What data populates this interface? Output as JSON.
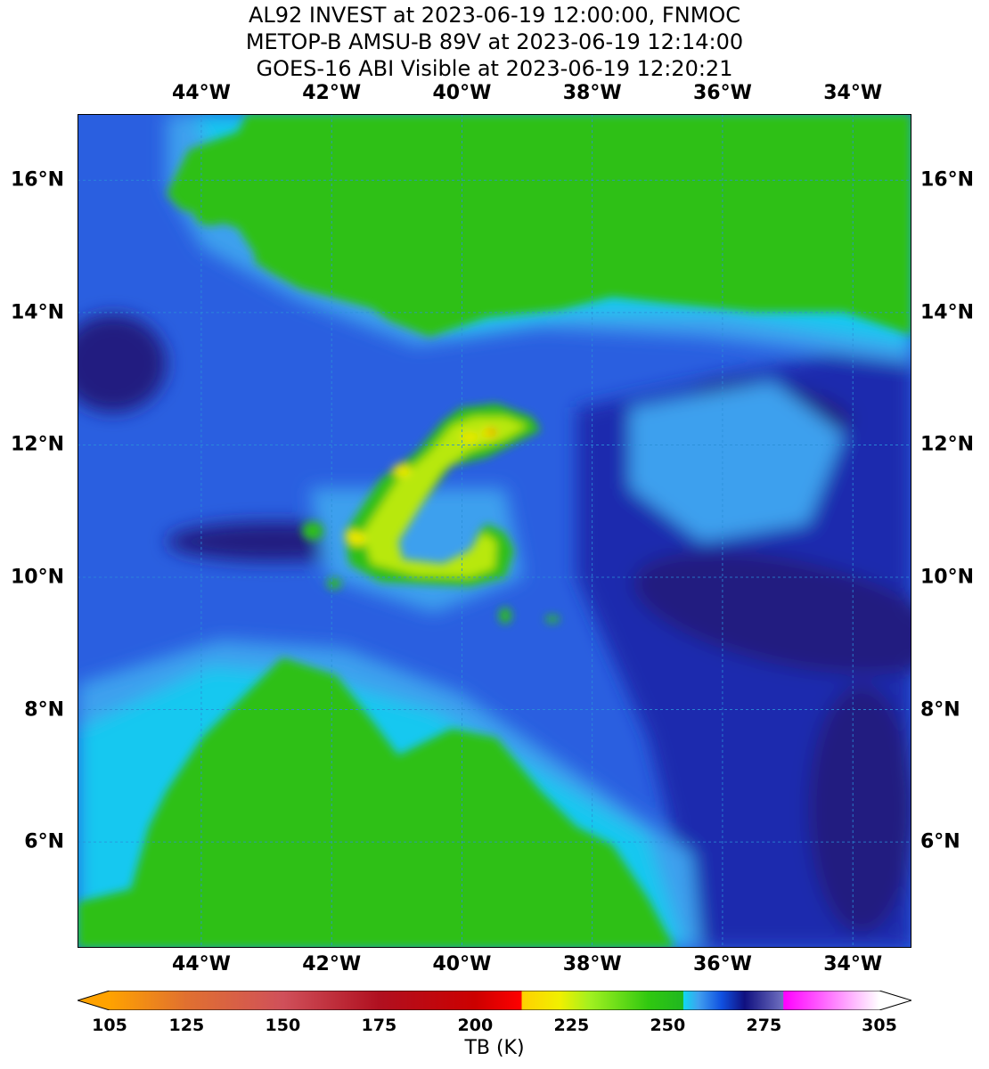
{
  "titles": [
    "AL92 INVEST at 2023-06-19 12:00:00, FNMOC",
    "METOP-B AMSU-B 89V at 2023-06-19 12:14:00",
    "GOES-16 ABI Visible at 2023-06-19 12:20:21"
  ],
  "map": {
    "lon_range": [
      -45.9,
      -33.1
    ],
    "lat_range": [
      4.4,
      17.0
    ],
    "lon_ticks": [
      {
        "label": "44°W",
        "value": -44
      },
      {
        "label": "42°W",
        "value": -42
      },
      {
        "label": "40°W",
        "value": -40
      },
      {
        "label": "38°W",
        "value": -38
      },
      {
        "label": "36°W",
        "value": -36
      },
      {
        "label": "34°W",
        "value": -34
      }
    ],
    "lat_ticks": [
      {
        "label": "16°N",
        "value": 16
      },
      {
        "label": "14°N",
        "value": 14
      },
      {
        "label": "12°N",
        "value": 12
      },
      {
        "label": "10°N",
        "value": 10
      },
      {
        "label": "8°N",
        "value": 8
      },
      {
        "label": "6°N",
        "value": 6
      }
    ],
    "gridlines": true,
    "colors": {
      "green": "#2ec012",
      "cyan": "#15c8f0",
      "light_blue": "#3ea0ee",
      "mid_blue": "#2a5fe0",
      "dark_blue": "#1a2aae",
      "navy": "#201a80",
      "yellow_green": "#b8e810",
      "yellow": "#f0e800",
      "red": "#e80000",
      "grid": "#2a8fd8"
    }
  },
  "colorbar": {
    "label": "TB (K)",
    "range": [
      105,
      305
    ],
    "ticks": [
      105,
      125,
      150,
      175,
      200,
      225,
      250,
      275,
      305
    ],
    "stops": [
      {
        "value": 105,
        "color": "#ffa200"
      },
      {
        "value": 125,
        "color": "#e07030"
      },
      {
        "value": 150,
        "color": "#d0505a"
      },
      {
        "value": 175,
        "color": "#b01020"
      },
      {
        "value": 200,
        "color": "#cc0000"
      },
      {
        "value": 212,
        "color": "#ff0000"
      },
      {
        "value": 212.1,
        "color": "#ffd000"
      },
      {
        "value": 222,
        "color": "#f0f000"
      },
      {
        "value": 230,
        "color": "#a0f020"
      },
      {
        "value": 245,
        "color": "#30c810"
      },
      {
        "value": 254,
        "color": "#20b820"
      },
      {
        "value": 254.1,
        "color": "#10d8f0"
      },
      {
        "value": 258,
        "color": "#40a0f0"
      },
      {
        "value": 264,
        "color": "#1050e0"
      },
      {
        "value": 270,
        "color": "#101080"
      },
      {
        "value": 280,
        "color": "#7070c0"
      },
      {
        "value": 280.1,
        "color": "#ff00ff"
      },
      {
        "value": 290,
        "color": "#ff60ff"
      },
      {
        "value": 305,
        "color": "#ffffff"
      }
    ]
  }
}
